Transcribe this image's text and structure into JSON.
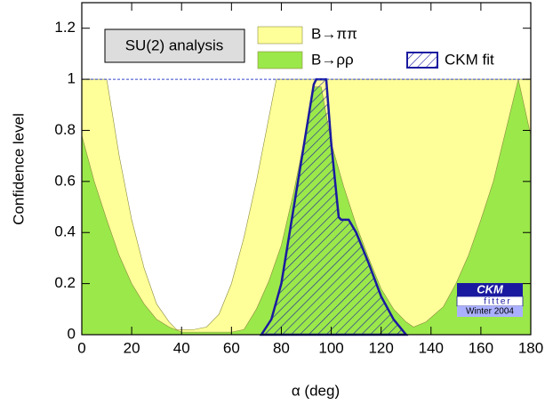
{
  "chart_data": {
    "type": "area",
    "x_label": "α    (deg)",
    "y_label": "Confidence level",
    "xlim": [
      0,
      180
    ],
    "ylim": [
      0,
      1.3
    ],
    "xticks": [
      0,
      20,
      40,
      60,
      80,
      100,
      120,
      140,
      160,
      180
    ],
    "yticks": [
      0,
      0.2,
      0.4,
      0.6,
      0.8,
      1,
      1.2
    ],
    "reference_line": 1,
    "annotation": "SU(2) analysis",
    "logo": {
      "title": "CKM",
      "subtitle": "fitter",
      "edition": "Winter 2004"
    },
    "series": [
      {
        "name": "B→ππ",
        "color": "#ffff99",
        "hatch": false,
        "x": [
          0,
          10,
          15,
          20,
          25,
          30,
          35,
          38,
          45,
          50,
          55,
          60,
          65,
          70,
          75,
          78,
          180
        ],
        "values": [
          1,
          1,
          0.7,
          0.45,
          0.26,
          0.12,
          0.05,
          0.02,
          0.02,
          0.03,
          0.08,
          0.2,
          0.38,
          0.6,
          0.85,
          1,
          1
        ]
      },
      {
        "name": "B→ρρ",
        "color": "#9be84a",
        "hatch": false,
        "x": [
          0,
          5,
          10,
          15,
          20,
          25,
          30,
          35,
          40,
          60,
          65,
          70,
          75,
          80,
          85,
          90,
          93,
          96,
          100,
          105,
          110,
          115,
          120,
          125,
          130,
          133,
          138,
          145,
          150,
          155,
          160,
          165,
          170,
          175,
          180
        ],
        "values": [
          0.78,
          0.6,
          0.45,
          0.31,
          0.2,
          0.12,
          0.06,
          0.03,
          0.01,
          0.01,
          0.02,
          0.1,
          0.21,
          0.35,
          0.56,
          0.8,
          0.97,
          0.97,
          0.75,
          0.58,
          0.43,
          0.3,
          0.18,
          0.1,
          0.05,
          0.03,
          0.05,
          0.11,
          0.2,
          0.31,
          0.45,
          0.6,
          0.8,
          1,
          0.78
        ]
      },
      {
        "name": "CKM fit",
        "color": "#1a1aa0",
        "hatch": true,
        "x": [
          72,
          76,
          80,
          85,
          90,
          93,
          94,
          98,
          100,
          103,
          104,
          107,
          110,
          115,
          120,
          125,
          130
        ],
        "values": [
          0,
          0.06,
          0.2,
          0.5,
          0.8,
          0.98,
          1,
          1,
          0.75,
          0.46,
          0.45,
          0.45,
          0.4,
          0.28,
          0.15,
          0.06,
          0
        ]
      }
    ]
  }
}
